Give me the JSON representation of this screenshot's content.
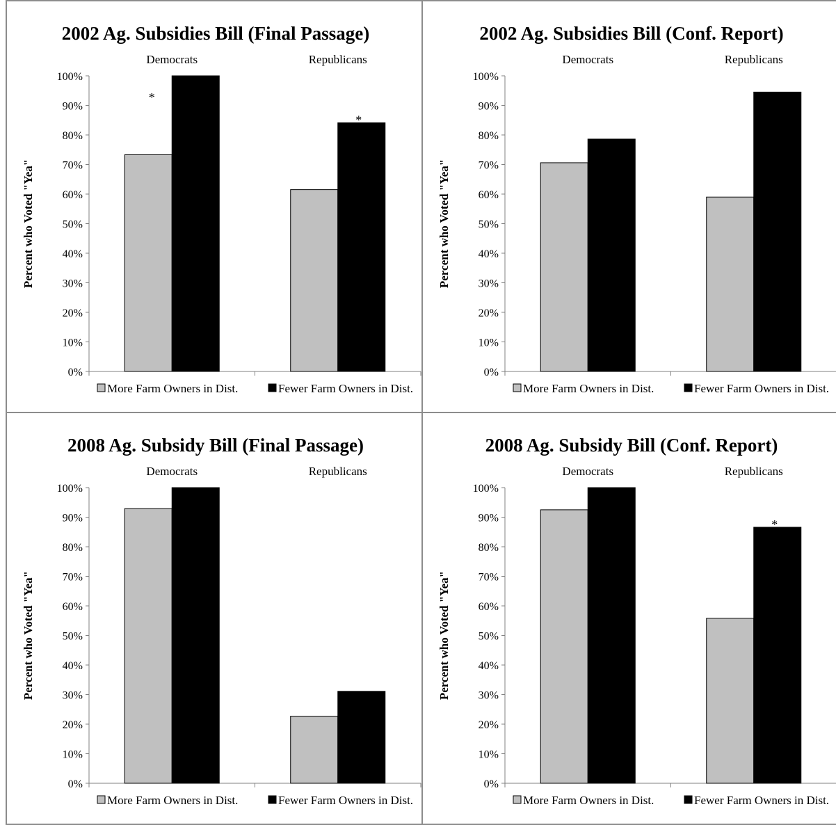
{
  "colors": {
    "more": "#c0c0c0",
    "fewer": "#000000",
    "border": "#8c8c8c"
  },
  "legend": {
    "more": "More Farm Owners in Dist.",
    "fewer": "Fewer Farm Owners in Dist."
  },
  "ylabel": "Percent who Voted \"Yea\"",
  "yticks": [
    "0%",
    "10%",
    "20%",
    "30%",
    "40%",
    "50%",
    "60%",
    "70%",
    "80%",
    "90%",
    "100%"
  ],
  "chart_data": [
    {
      "type": "bar",
      "title": "2002 Ag. Subsidies Bill (Final Passage)",
      "categories": [
        "Democrats",
        "Republicans"
      ],
      "ylim": [
        0,
        100
      ],
      "series": [
        {
          "name": "More Farm Owners in Dist.",
          "values": [
            73.3,
            61.5
          ]
        },
        {
          "name": "Fewer Farm Owners in Dist.",
          "values": [
            100,
            84.1
          ]
        }
      ],
      "annotations": [
        "*",
        "*"
      ],
      "legend_position": "bottom"
    },
    {
      "type": "bar",
      "title": "2002 Ag. Subsidies Bill (Conf. Report)",
      "categories": [
        "Democrats",
        "Republicans"
      ],
      "ylim": [
        0,
        100
      ],
      "series": [
        {
          "name": "More Farm Owners in Dist.",
          "values": [
            70.6,
            59.0
          ]
        },
        {
          "name": "Fewer Farm Owners in Dist.",
          "values": [
            78.6,
            94.5
          ]
        }
      ],
      "annotations": [
        "",
        "*"
      ],
      "legend_position": "bottom"
    },
    {
      "type": "bar",
      "title": "2008 Ag. Subsidy Bill (Final Passage)",
      "categories": [
        "Democrats",
        "Republicans"
      ],
      "ylim": [
        0,
        100
      ],
      "series": [
        {
          "name": "More Farm Owners in Dist.",
          "values": [
            92.9,
            22.7
          ]
        },
        {
          "name": "Fewer Farm Owners in Dist.",
          "values": [
            100,
            31.1
          ]
        }
      ],
      "annotations": [
        "",
        ""
      ],
      "legend_position": "bottom"
    },
    {
      "type": "bar",
      "title": "2008 Ag. Subsidy Bill (Conf. Report)",
      "categories": [
        "Democrats",
        "Republicans"
      ],
      "ylim": [
        0,
        100
      ],
      "series": [
        {
          "name": "More Farm Owners in Dist.",
          "values": [
            92.5,
            55.8
          ]
        },
        {
          "name": "Fewer Farm Owners in Dist.",
          "values": [
            100,
            86.6
          ]
        }
      ],
      "annotations": [
        "",
        "*"
      ],
      "legend_position": "bottom"
    }
  ]
}
